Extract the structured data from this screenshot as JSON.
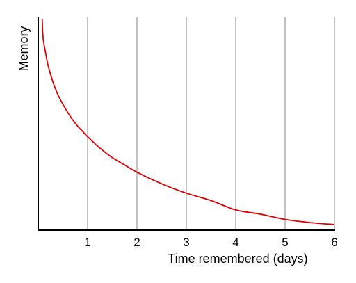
{
  "chart_data": {
    "type": "line",
    "title": "",
    "xlabel": "Time remembered (days)",
    "ylabel": "Memory",
    "xlim": [
      0.08,
      6
    ],
    "ylim": [
      0,
      1
    ],
    "x_ticks": [
      "1",
      "2",
      "3",
      "4",
      "5",
      "6"
    ],
    "grid": "vertical",
    "series": [
      {
        "color": "#e00000",
        "x": [
          0.08,
          0.1,
          0.15,
          0.2,
          0.3,
          0.4,
          0.5,
          0.6,
          0.7,
          0.8,
          0.9,
          1.0,
          1.25,
          1.5,
          1.75,
          2.0,
          2.5,
          3.0,
          3.5,
          4.0,
          4.5,
          5.0,
          5.5,
          6.0
        ],
        "y": [
          1.0,
          0.91,
          0.84,
          0.78,
          0.7,
          0.64,
          0.595,
          0.555,
          0.52,
          0.49,
          0.465,
          0.44,
          0.385,
          0.34,
          0.305,
          0.27,
          0.215,
          0.17,
          0.135,
          0.09,
          0.07,
          0.045,
          0.03,
          0.02
        ]
      }
    ]
  },
  "colors": {
    "grid": "#9a9a9a",
    "axis": "#000000"
  }
}
